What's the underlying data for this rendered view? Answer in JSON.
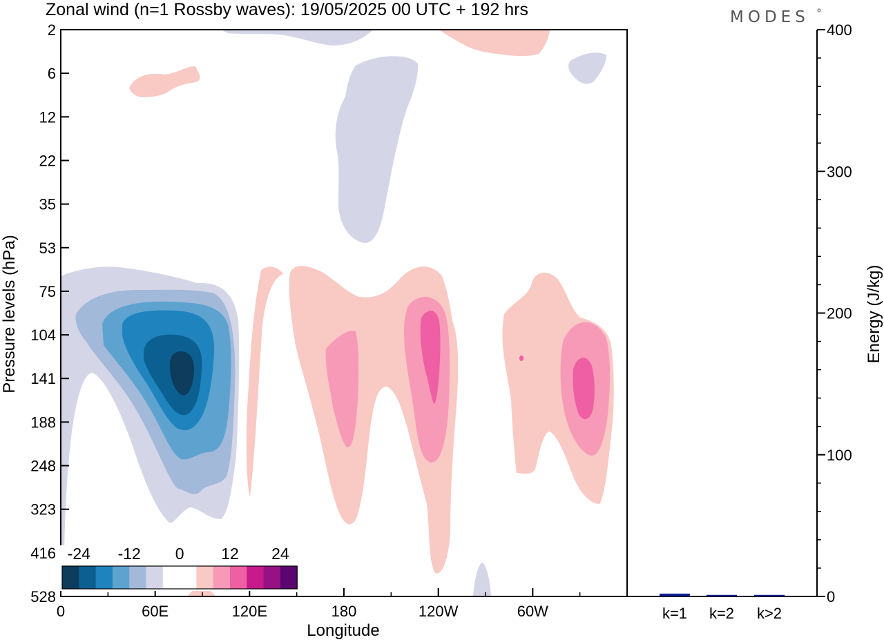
{
  "title": "Zonal wind (n=1 Rossby waves):  19/05/2025  00 UTC  + 192 hrs",
  "brand": "MODES",
  "colors": {
    "neg": [
      "#0d3c5c",
      "#0b5f91",
      "#1f84bd",
      "#5ea3d0",
      "#a2b9d9",
      "#d4d6e8"
    ],
    "pos": [
      "#f9c9c4",
      "#f79ab8",
      "#ee5fa3",
      "#c81a8b",
      "#961283",
      "#5b0670"
    ],
    "bar": "#0b1f8e",
    "axis": "#000000"
  },
  "chart_data": [
    {
      "type": "heatmap",
      "title": "Zonal wind (n=1 Rossby waves):  19/05/2025  00 UTC  + 192 hrs",
      "xlabel": "Longitude",
      "ylabel": "Pressure levels (hPa)",
      "x_ticks": [
        "0",
        "60E",
        "120E",
        "180",
        "120W",
        "60W"
      ],
      "x_tick_lon": [
        0,
        60,
        120,
        180,
        240,
        300
      ],
      "xlim": [
        0,
        360
      ],
      "y_ticks": [
        "2",
        "6",
        "12",
        "22",
        "35",
        "53",
        "75",
        "104",
        "141",
        "188",
        "248",
        "323",
        "416",
        "528"
      ],
      "y_scale": "model levels (top to bottom)",
      "colorbar": {
        "tick_labels": [
          "-24",
          "-12",
          "0",
          "12",
          "24"
        ],
        "levels": [
          -24,
          -20,
          -16,
          -12,
          -8,
          -4,
          4,
          8,
          12,
          16,
          20,
          24
        ]
      },
      "features": [
        {
          "sign": "negative",
          "lon": 75,
          "level": "141",
          "min_value": -20
        },
        {
          "sign": "negative",
          "lon": 195,
          "level": "22",
          "min_value": -4
        },
        {
          "sign": "positive",
          "lon": 175,
          "level": "141",
          "max_value": 8
        },
        {
          "sign": "positive",
          "lon": 235,
          "level": "141",
          "max_value": 12
        },
        {
          "sign": "positive",
          "lon": 320,
          "level": "141",
          "max_value": 12
        },
        {
          "sign": "positive",
          "lon": 40,
          "level": "6",
          "max_value": 4
        },
        {
          "sign": "positive",
          "lon": 280,
          "level": "2",
          "max_value": 4
        }
      ]
    },
    {
      "type": "bar",
      "ylabel": "Energy (J/kg)",
      "ylim": [
        0,
        400
      ],
      "y_ticks": [
        "0",
        "100",
        "200",
        "300",
        "400"
      ],
      "categories": [
        "k=1",
        "k=2",
        "k>2"
      ],
      "values": [
        1.5,
        0.6,
        0.6
      ]
    }
  ]
}
